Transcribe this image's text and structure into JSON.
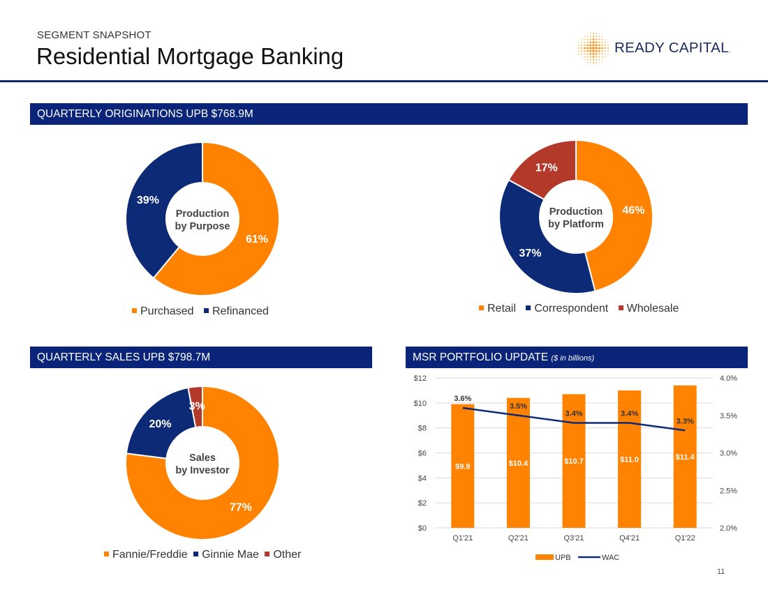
{
  "header": {
    "eyebrow": "SEGMENT SNAPSHOT",
    "title": "Residential Mortgage Banking",
    "logo_text": "READY CAPITAL",
    "logo_mark": "."
  },
  "bands": {
    "originations": "QUARTERLY ORIGINATIONS UPB $768.9M",
    "sales": "QUARTERLY SALES UPB $798.7M",
    "msr": "MSR PORTFOLIO UPDATE",
    "msr_note": "($ in billions)"
  },
  "colors": {
    "orange": "#FF8200",
    "navy": "#0C2A75",
    "red": "#B33A2A",
    "band": "#0A2479"
  },
  "page_number": "11",
  "chart_data": [
    {
      "type": "pie",
      "center_label": [
        "Production",
        "by Purpose"
      ],
      "slices": [
        {
          "name": "Purchased",
          "value": 61,
          "label": "61%",
          "color": "#FF8200"
        },
        {
          "name": "Refinanced",
          "value": 39,
          "label": "39%",
          "color": "#0C2A75"
        }
      ],
      "legend": [
        "Purchased",
        "Refinanced"
      ]
    },
    {
      "type": "pie",
      "center_label": [
        "Production",
        "by Platform"
      ],
      "slices": [
        {
          "name": "Retail",
          "value": 46,
          "label": "46%",
          "color": "#FF8200"
        },
        {
          "name": "Correspondent",
          "value": 37,
          "label": "37%",
          "color": "#0C2A75"
        },
        {
          "name": "Wholesale",
          "value": 17,
          "label": "17%",
          "color": "#B33A2A"
        }
      ],
      "legend": [
        "Retail",
        "Correspondent",
        "Wholesale"
      ]
    },
    {
      "type": "pie",
      "center_label": [
        "Sales",
        "by Investor"
      ],
      "slices": [
        {
          "name": "Fannie/Freddie",
          "value": 77,
          "label": "77%",
          "color": "#FF8200"
        },
        {
          "name": "Ginnie Mae",
          "value": 20,
          "label": "20%",
          "color": "#0C2A75"
        },
        {
          "name": "Other",
          "value": 3,
          "label": "3%",
          "color": "#B33A2A"
        }
      ],
      "legend": [
        "Fannie/Freddie",
        "Ginnie Mae",
        "Other"
      ]
    },
    {
      "type": "bar",
      "categories": [
        "Q1'21",
        "Q2'21",
        "Q3'21",
        "Q4'21",
        "Q1'22"
      ],
      "series": [
        {
          "name": "UPB",
          "type": "bar",
          "axis": "left",
          "color": "#FF8200",
          "values": [
            9.9,
            10.4,
            10.7,
            11.0,
            11.4
          ],
          "labels": [
            "$9.9",
            "$10.4",
            "$10.7",
            "$11.0",
            "$11.4"
          ]
        },
        {
          "name": "WAC",
          "type": "line",
          "axis": "right",
          "color": "#0C2A75",
          "values": [
            3.6,
            3.5,
            3.4,
            3.4,
            3.3
          ],
          "labels": [
            "3.6%",
            "3.5%",
            "3.4%",
            "3.4%",
            "3.3%"
          ]
        }
      ],
      "y_left": {
        "min": 0,
        "max": 12,
        "step": 2,
        "ticks": [
          "$0",
          "$2",
          "$4",
          "$6",
          "$8",
          "$10",
          "$12"
        ]
      },
      "y_right": {
        "min": 2.0,
        "max": 4.0,
        "step": 0.5,
        "ticks": [
          "2.0%",
          "2.5%",
          "3.0%",
          "3.5%",
          "4.0%"
        ]
      },
      "grid": true,
      "legend": [
        "UPB",
        "WAC"
      ],
      "legend_position": "bottom"
    }
  ]
}
